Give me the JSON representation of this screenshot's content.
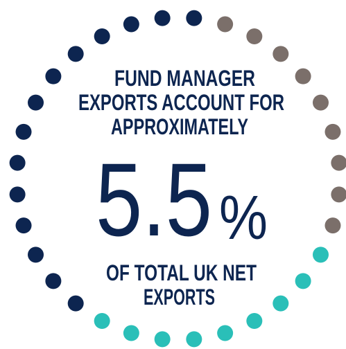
{
  "lines_top": [
    "FUND MANAGER",
    "EXPORTS ACCOUNT FOR",
    "APPROXIMATELY"
  ],
  "figure": {
    "number": "5.5",
    "unit": "%"
  },
  "lines_bottom": [
    "OF TOTAL UK NET",
    "EXPORTS"
  ]
}
